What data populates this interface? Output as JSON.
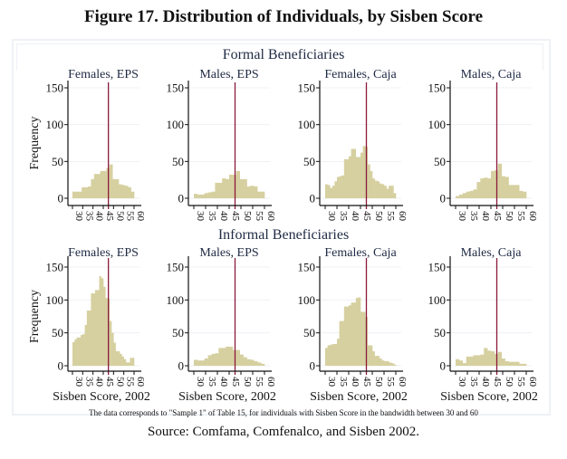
{
  "figure": {
    "title": "Figure 17. Distribution of Individuals, by Sisben Score",
    "note": "The data corresponds to \"Sample 1\" of Table 15, for individuals with Sisben Score in the bandwidth between 30 and 60",
    "source": "Source: Comfama, Comfenalco, and Sisben 2002.",
    "colors": {
      "bars": "#d6d0a0",
      "cutoff": "#8b1a3a",
      "grid": "#eef1f5",
      "axis": "#111111"
    }
  },
  "chart_data": [
    {
      "type": "bar",
      "group": "Formal Beneficiaries",
      "title": "Females, EPS",
      "ylabel": "Frequency",
      "xlabel": "",
      "ylim": [
        0,
        150
      ],
      "yticks": [
        0,
        50,
        100,
        150
      ],
      "xticks": [
        30,
        35,
        40,
        45,
        50,
        55,
        60
      ],
      "xlim": [
        30,
        60
      ],
      "cutoff": 47.5,
      "bin_width": 1.5,
      "x": [
        30,
        31.5,
        33,
        34.5,
        36,
        37.5,
        39,
        40.5,
        42,
        43.5,
        45,
        46.5,
        48,
        49.5,
        51,
        52.5,
        54,
        55.5,
        57,
        58.5
      ],
      "values": [
        9,
        9,
        9,
        15,
        15,
        16,
        26,
        33,
        33,
        37,
        37,
        41,
        46,
        26,
        26,
        19,
        18,
        17,
        15,
        9
      ]
    },
    {
      "type": "bar",
      "group": "Formal Beneficiaries",
      "title": "Males, EPS",
      "ylabel": "",
      "xlabel": "",
      "ylim": [
        0,
        150
      ],
      "yticks": [
        0,
        50,
        100,
        150
      ],
      "xticks": [
        30,
        35,
        40,
        45,
        50,
        55,
        60
      ],
      "xlim": [
        30,
        60
      ],
      "cutoff": 47.5,
      "bin_width": 1.5,
      "x": [
        30,
        31.5,
        33,
        34.5,
        36,
        37.5,
        39,
        40.5,
        42,
        43.5,
        45,
        46.5,
        48,
        49.5,
        51,
        52.5,
        54,
        55.5,
        57,
        58.5
      ],
      "values": [
        6,
        5,
        5,
        7,
        8,
        9,
        21,
        21,
        27,
        26,
        32,
        32,
        37,
        26,
        26,
        16,
        17,
        16,
        9,
        9
      ]
    },
    {
      "type": "bar",
      "group": "Formal Beneficiaries",
      "title": "Females, Caja",
      "ylabel": "",
      "xlabel": "",
      "ylim": [
        0,
        150
      ],
      "yticks": [
        0,
        50,
        100,
        150
      ],
      "xticks": [
        30,
        35,
        40,
        45,
        50,
        55,
        60
      ],
      "xlim": [
        30,
        60
      ],
      "cutoff": 47.5,
      "bin_width": 1,
      "x": [
        30,
        31,
        32,
        33,
        34,
        35,
        36,
        37,
        38,
        39,
        40,
        41,
        42,
        43,
        44,
        45,
        46,
        47,
        48,
        49,
        50,
        51,
        52,
        53,
        54,
        55,
        56,
        57,
        58,
        59
      ],
      "values": [
        19,
        18,
        14,
        17,
        23,
        29,
        30,
        31,
        53,
        53,
        57,
        67,
        67,
        56,
        56,
        62,
        71,
        70,
        46,
        37,
        27,
        24,
        23,
        20,
        19,
        17,
        13,
        17,
        17,
        7
      ]
    },
    {
      "type": "bar",
      "group": "Formal Beneficiaries",
      "title": "Males, Caja",
      "ylabel": "",
      "xlabel": "",
      "ylim": [
        0,
        150
      ],
      "yticks": [
        0,
        50,
        100,
        150
      ],
      "xticks": [
        30,
        35,
        40,
        45,
        50,
        55,
        60
      ],
      "xlim": [
        30,
        60
      ],
      "cutoff": 47.5,
      "bin_width": 1.5,
      "x": [
        30,
        31.5,
        33,
        34.5,
        36,
        37.5,
        39,
        40.5,
        42,
        43.5,
        45,
        46.5,
        48,
        49.5,
        51,
        52.5,
        54,
        55.5,
        57,
        58.5
      ],
      "values": [
        3,
        5,
        7,
        9,
        10,
        12,
        22,
        27,
        28,
        27,
        37,
        38,
        47,
        30,
        29,
        18,
        18,
        18,
        10,
        9
      ]
    },
    {
      "type": "bar",
      "group": "Informal Beneficiaries",
      "title": "Females, EPS",
      "ylabel": "Frequency",
      "xlabel": "Sisben Score, 2002",
      "ylim": [
        0,
        150
      ],
      "yticks": [
        0,
        50,
        100,
        150
      ],
      "xticks": [
        30,
        35,
        40,
        45,
        50,
        55,
        60
      ],
      "xlim": [
        30,
        60
      ],
      "cutoff": 47.5,
      "bin_width": 1,
      "x": [
        30,
        31,
        32,
        33,
        34,
        35,
        36,
        37,
        38,
        39,
        40,
        41,
        42,
        43,
        44,
        45,
        46,
        47,
        48,
        49,
        50,
        51,
        52,
        53,
        54,
        55,
        56,
        57,
        58,
        59
      ],
      "values": [
        36,
        40,
        43,
        43,
        47,
        48,
        62,
        84,
        84,
        110,
        110,
        115,
        115,
        136,
        133,
        120,
        103,
        102,
        68,
        50,
        35,
        22,
        22,
        18,
        14,
        10,
        5,
        5,
        12,
        12
      ]
    },
    {
      "type": "bar",
      "group": "Informal Beneficiaries",
      "title": "Males, EPS",
      "ylabel": "",
      "xlabel": "Sisben Score, 2002",
      "ylim": [
        0,
        150
      ],
      "yticks": [
        0,
        50,
        100,
        150
      ],
      "xticks": [
        30,
        35,
        40,
        45,
        50,
        55,
        60
      ],
      "xlim": [
        30,
        60
      ],
      "cutoff": 47.5,
      "bin_width": 1.5,
      "x": [
        30,
        31.5,
        33,
        34.5,
        36,
        37.5,
        39,
        40.5,
        42,
        43.5,
        45,
        46.5,
        48,
        49.5,
        51,
        52.5,
        54,
        55.5,
        57,
        58.5
      ],
      "values": [
        9,
        8,
        8,
        11,
        16,
        18,
        19,
        27,
        27,
        29,
        29,
        24,
        24,
        17,
        13,
        10,
        9,
        7,
        5,
        3
      ]
    },
    {
      "type": "bar",
      "group": "Informal Beneficiaries",
      "title": "Females, Caja",
      "ylabel": "",
      "xlabel": "Sisben Score, 2002",
      "ylim": [
        0,
        150
      ],
      "yticks": [
        0,
        50,
        100,
        150
      ],
      "xticks": [
        30,
        35,
        40,
        45,
        50,
        55,
        60
      ],
      "xlim": [
        30,
        60
      ],
      "cutoff": 47.5,
      "bin_width": 1,
      "x": [
        30,
        31,
        32,
        33,
        34,
        35,
        36,
        37,
        38,
        39,
        40,
        41,
        42,
        43,
        44,
        45,
        46,
        47,
        48,
        49,
        50,
        51,
        52,
        53,
        54,
        55,
        56,
        57,
        58,
        59
      ],
      "values": [
        27,
        31,
        32,
        33,
        33,
        41,
        68,
        68,
        90,
        90,
        92,
        96,
        96,
        103,
        104,
        82,
        82,
        74,
        31,
        31,
        22,
        15,
        15,
        11,
        8,
        7,
        7,
        5,
        4,
        2
      ]
    },
    {
      "type": "bar",
      "group": "Informal Beneficiaries",
      "title": "Males, Caja",
      "ylabel": "",
      "xlabel": "Sisben Score, 2002",
      "ylim": [
        0,
        150
      ],
      "yticks": [
        0,
        50,
        100,
        150
      ],
      "xticks": [
        30,
        35,
        40,
        45,
        50,
        55,
        60
      ],
      "xlim": [
        30,
        60
      ],
      "cutoff": 47.5,
      "bin_width": 1.5,
      "x": [
        30,
        31.5,
        33,
        34.5,
        36,
        37.5,
        39,
        40.5,
        42,
        43.5,
        45,
        46.5,
        48,
        49.5,
        51,
        52.5,
        54,
        55.5,
        57,
        58.5
      ],
      "values": [
        10,
        8,
        4,
        14,
        14,
        16,
        16,
        17,
        27,
        23,
        22,
        18,
        21,
        11,
        7,
        6,
        6,
        6,
        3,
        3
      ]
    }
  ],
  "groups": [
    "Formal Beneficiaries",
    "Informal Beneficiaries"
  ]
}
